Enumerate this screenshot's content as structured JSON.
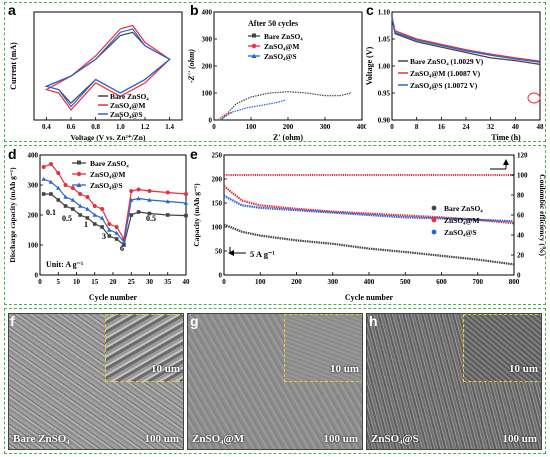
{
  "panels": {
    "a": {
      "letter": "a",
      "xlabel": "Voltage (V vs. Zn²⁺/Zn)",
      "ylabel": "Current (mA)",
      "xticks": [
        "0.4",
        "0.6",
        "0.8",
        "1.0",
        "1.2",
        "1.4"
      ],
      "legend": [
        "Bare ZnSO₄",
        "ZnSO₄@M",
        "ZnSO₄@S"
      ]
    },
    "b": {
      "letter": "b",
      "title": "After 50 cycles",
      "xlabel": "Z' (ohm)",
      "ylabel": "-Z'' (ohm)",
      "xticks": [
        "0",
        "100",
        "200",
        "300",
        "400"
      ],
      "yticks": [
        "0",
        "100",
        "200",
        "300",
        "400"
      ],
      "legend": [
        "Bare ZnSO₄",
        "ZnSO₄@M",
        "ZnSO₄@S"
      ]
    },
    "c": {
      "letter": "c",
      "xlabel": "Time (h)",
      "ylabel": "Voltage (V)",
      "xticks": [
        "0",
        "8",
        "16",
        "24",
        "32",
        "40",
        "48"
      ],
      "yticks": [
        "0.90",
        "0.95",
        "1.00",
        "1.05",
        "1.10"
      ],
      "legend": [
        "Bare ZnSO₄ (1.0029 V)",
        "ZnSO₄@M (1.0087 V)",
        "ZnSO₄@S (1.0072 V)"
      ]
    },
    "d": {
      "letter": "d",
      "xlabel": "Cycle number",
      "ylabel": "Discharge capacity (mAh g⁻¹)",
      "xticks": [
        "0",
        "5",
        "10",
        "15",
        "20",
        "25",
        "30",
        "35",
        "40"
      ],
      "yticks": [
        "0",
        "100",
        "200",
        "300",
        "400"
      ],
      "legend": [
        "Bare ZnSO₄",
        "ZnSO₄@M",
        "ZnSO₄@S"
      ],
      "rate_labels": [
        "0.1",
        "0.5",
        "1",
        "3",
        "6",
        "0.5"
      ],
      "unit_note": "Unit: A g⁻¹"
    },
    "e": {
      "letter": "e",
      "xlabel": "Cycle number",
      "ylabel": "Capacity (mAh g⁻¹)",
      "ylabel2": "Coulombic efficiency (%)",
      "xticks": [
        "0",
        "100",
        "200",
        "300",
        "400",
        "500",
        "600",
        "700",
        "800"
      ],
      "yticks": [
        "0",
        "50",
        "100",
        "150",
        "200",
        "250"
      ],
      "yticks2": [
        "0",
        "20",
        "40",
        "60",
        "80",
        "100",
        "120"
      ],
      "legend": [
        "Bare ZnSO₄",
        "ZnSO₄@M",
        "ZnSO₄@S"
      ],
      "rate_note": "5 A g⁻¹"
    },
    "f": {
      "letter": "f",
      "label": "Bare ZnSO₄",
      "scale": "100 um",
      "inset_scale": "10 um"
    },
    "g": {
      "letter": "g",
      "label": "ZnSO₄@M",
      "scale": "100 um",
      "inset_scale": "10 um"
    },
    "h": {
      "letter": "h",
      "label": "ZnSO₄@S",
      "scale": "100 um",
      "inset_scale": "10 um"
    }
  },
  "colors": {
    "bare": "#444444",
    "m": "#e8303a",
    "s": "#2a64d8"
  },
  "chart_data": [
    {
      "type": "line",
      "panel": "a",
      "xlabel": "Voltage (V vs. Zn²⁺/Zn)",
      "ylabel": "Current (mA)",
      "xlim": [
        0.3,
        1.5
      ],
      "series": [
        {
          "name": "Bare ZnSO₄",
          "x": [
            0.4,
            0.6,
            0.8,
            1.0,
            1.1,
            1.2,
            1.4,
            1.2,
            1.0,
            0.8,
            0.6,
            0.5,
            0.4
          ],
          "y": [
            -0.6,
            -0.3,
            0.2,
            0.9,
            1.0,
            0.6,
            0.2,
            -0.4,
            -0.8,
            -0.4,
            -1.1,
            -0.7,
            -0.6
          ]
        },
        {
          "name": "ZnSO₄@M",
          "x": [
            0.4,
            0.6,
            0.8,
            1.0,
            1.1,
            1.2,
            1.4,
            1.2,
            1.0,
            0.8,
            0.6,
            0.5,
            0.4
          ],
          "y": [
            -0.7,
            -0.3,
            0.3,
            1.1,
            1.2,
            0.7,
            0.2,
            -0.5,
            -0.9,
            -0.5,
            -1.3,
            -0.8,
            -0.7
          ]
        },
        {
          "name": "ZnSO₄@S",
          "x": [
            0.4,
            0.6,
            0.8,
            1.0,
            1.1,
            1.2,
            1.4,
            1.2,
            1.0,
            0.8,
            0.6,
            0.5,
            0.4
          ],
          "y": [
            -0.6,
            -0.3,
            0.2,
            1.0,
            1.1,
            0.6,
            0.2,
            -0.4,
            -0.8,
            -0.4,
            -1.2,
            -0.7,
            -0.6
          ]
        }
      ]
    },
    {
      "type": "scatter",
      "panel": "b",
      "xlabel": "Z' (ohm)",
      "ylabel": "-Z'' (ohm)",
      "xlim": [
        0,
        400
      ],
      "ylim": [
        0,
        400
      ],
      "series": [
        {
          "name": "Bare ZnSO₄",
          "x": [
            20,
            60,
            100,
            150,
            200,
            250,
            300,
            340,
            370
          ],
          "y": [
            0,
            60,
            85,
            100,
            105,
            100,
            90,
            90,
            100
          ]
        },
        {
          "name": "ZnSO₄@M",
          "x": [
            10,
            20,
            30,
            40,
            50
          ],
          "y": [
            0,
            10,
            20,
            25,
            28
          ]
        },
        {
          "name": "ZnSO₄@S",
          "x": [
            15,
            50,
            90,
            130,
            170,
            195
          ],
          "y": [
            0,
            30,
            45,
            55,
            65,
            75
          ]
        }
      ]
    },
    {
      "type": "line",
      "panel": "c",
      "xlabel": "Time (h)",
      "ylabel": "Voltage (V)",
      "xlim": [
        0,
        48
      ],
      "ylim": [
        0.9,
        1.1
      ],
      "series": [
        {
          "name": "Bare ZnSO₄ (1.0029 V)",
          "x": [
            0,
            1,
            8,
            16,
            24,
            32,
            40,
            48
          ],
          "y": [
            1.09,
            1.06,
            1.045,
            1.035,
            1.025,
            1.015,
            1.01,
            1.003
          ]
        },
        {
          "name": "ZnSO₄@M (1.0087 V)",
          "x": [
            0,
            1,
            8,
            16,
            24,
            32,
            40,
            48
          ],
          "y": [
            1.09,
            1.065,
            1.05,
            1.04,
            1.03,
            1.022,
            1.015,
            1.009
          ]
        },
        {
          "name": "ZnSO₄@S (1.0072 V)",
          "x": [
            0,
            1,
            8,
            16,
            24,
            32,
            40,
            48
          ],
          "y": [
            1.09,
            1.062,
            1.048,
            1.038,
            1.028,
            1.02,
            1.013,
            1.007
          ]
        }
      ]
    },
    {
      "type": "line",
      "panel": "d",
      "xlabel": "Cycle number",
      "ylabel": "Discharge capacity (mAh g⁻¹)",
      "xlim": [
        0,
        40
      ],
      "ylim": [
        0,
        400
      ],
      "series": [
        {
          "name": "Bare ZnSO₄",
          "x": [
            1,
            3,
            5,
            7,
            9,
            11,
            13,
            15,
            17,
            19,
            21,
            23,
            25,
            27,
            30,
            35,
            40
          ],
          "y": [
            270,
            270,
            250,
            230,
            220,
            200,
            190,
            170,
            160,
            130,
            120,
            100,
            200,
            210,
            205,
            200,
            198
          ]
        },
        {
          "name": "ZnSO₄@M",
          "x": [
            1,
            3,
            5,
            7,
            9,
            11,
            13,
            15,
            17,
            19,
            21,
            23,
            25,
            27,
            30,
            35,
            40
          ],
          "y": [
            360,
            370,
            340,
            300,
            290,
            270,
            260,
            230,
            220,
            170,
            160,
            120,
            280,
            285,
            280,
            275,
            270
          ]
        },
        {
          "name": "ZnSO₄@S",
          "x": [
            1,
            3,
            5,
            7,
            9,
            11,
            13,
            15,
            17,
            19,
            21,
            23,
            25,
            27,
            30,
            35,
            40
          ],
          "y": [
            320,
            310,
            290,
            260,
            250,
            230,
            220,
            200,
            190,
            150,
            140,
            110,
            250,
            255,
            250,
            245,
            240
          ]
        }
      ]
    },
    {
      "type": "line",
      "panel": "e",
      "xlabel": "Cycle number",
      "ylabel": "Capacity (mAh g⁻¹)",
      "ylabel2": "Coulombic efficiency (%)",
      "xlim": [
        0,
        800
      ],
      "ylim": [
        0,
        250
      ],
      "y2lim": [
        0,
        120
      ],
      "series": [
        {
          "name": "Bare ZnSO₄",
          "x": [
            0,
            50,
            100,
            200,
            300,
            400,
            500,
            600,
            700,
            800
          ],
          "y": [
            105,
            90,
            82,
            72,
            65,
            55,
            48,
            40,
            32,
            22
          ]
        },
        {
          "name": "ZnSO₄@M",
          "x": [
            0,
            50,
            100,
            200,
            300,
            400,
            500,
            600,
            700,
            800
          ],
          "y": [
            185,
            155,
            145,
            138,
            132,
            128,
            124,
            120,
            115,
            108
          ]
        },
        {
          "name": "ZnSO₄@S",
          "x": [
            0,
            50,
            100,
            200,
            300,
            400,
            500,
            600,
            700,
            800
          ],
          "y": [
            165,
            145,
            140,
            135,
            130,
            125,
            120,
            118,
            115,
            112
          ]
        },
        {
          "name": "Coulombic efficiency",
          "x": [
            0,
            100,
            200,
            300,
            400,
            500,
            600,
            700,
            800
          ],
          "y2": [
            100,
            100,
            100,
            100,
            100,
            100,
            100,
            100,
            100
          ]
        }
      ]
    }
  ]
}
